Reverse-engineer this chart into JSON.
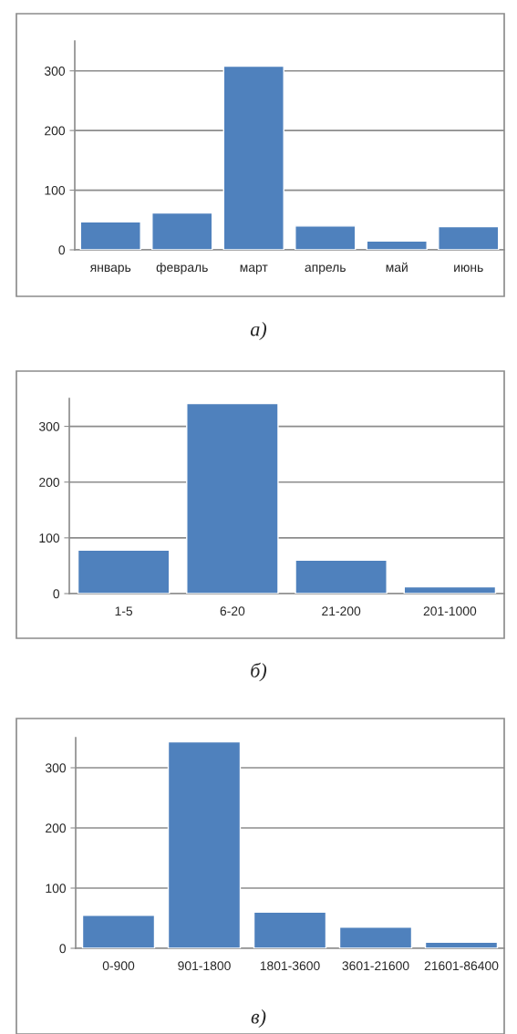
{
  "chart_data": [
    {
      "type": "bar",
      "categories": [
        "январь",
        "февраль",
        "март",
        "апрель",
        "май",
        "июнь"
      ],
      "values": [
        47,
        62,
        308,
        40,
        15,
        39
      ],
      "color": "#4f81bd",
      "ylim": [
        0,
        350
      ],
      "yticks": [
        0,
        100,
        200,
        300
      ],
      "grid": "y",
      "annotations": [
        "а)"
      ]
    },
    {
      "type": "bar",
      "categories": [
        "1-5",
        "6-20",
        "21-200",
        "201-1000"
      ],
      "values": [
        78,
        341,
        60,
        12
      ],
      "color": "#4f81bd",
      "ylim": [
        0,
        350
      ],
      "yticks": [
        0,
        100,
        200,
        300
      ],
      "grid": "y",
      "annotations": [
        "б)"
      ]
    },
    {
      "type": "bar",
      "categories": [
        "0-900",
        "901-1800",
        "1801-3600",
        "3601-21600",
        "21601-86400"
      ],
      "values": [
        55,
        343,
        60,
        35,
        10
      ],
      "color": "#4f81bd",
      "ylim": [
        0,
        350
      ],
      "yticks": [
        0,
        100,
        200,
        300
      ],
      "grid": "y",
      "annotations": [
        "в)"
      ]
    }
  ]
}
